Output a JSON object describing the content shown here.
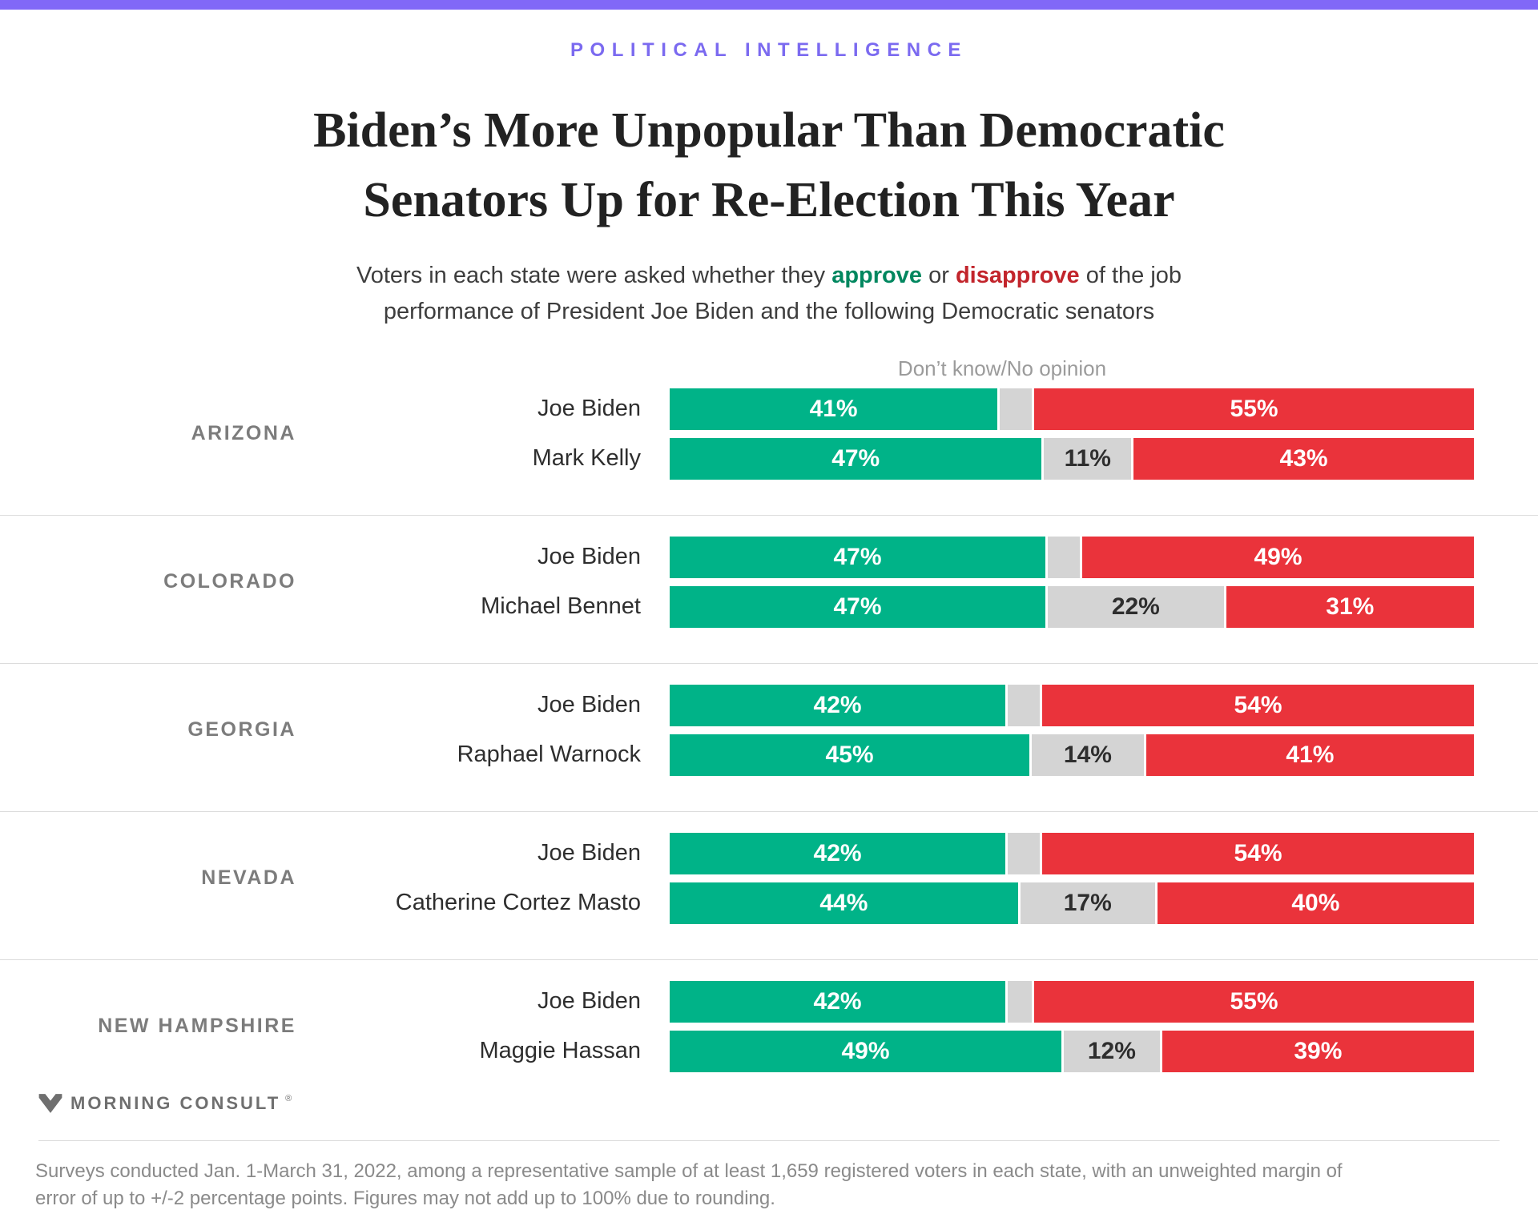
{
  "eyebrow": "POLITICAL INTELLIGENCE",
  "title": {
    "line1": "Biden’s More Unpopular Than Democratic",
    "line2": "Senators Up for Re-Election This Year"
  },
  "subtitle": {
    "prefix": "Voters in each state were asked whether they ",
    "approve_word": "approve",
    "conjunction": " or ",
    "disapprove_word": "disapprove",
    "suffix": " of the job",
    "line2": "performance of President Joe Biden and the following Democratic senators"
  },
  "colors": {
    "brand_bar": "#8168f7",
    "eyebrow_text": "#7b6af0",
    "approve_bar": "#00b388",
    "disapprove_bar": "#ea333b",
    "neutral_bar": "#d4d4d4",
    "approve_text": "#00875f",
    "disapprove_text": "#c2242b"
  },
  "chart_data": {
    "type": "bar",
    "subtype": "horizontal-stacked",
    "annotation": "Don’t know/No opinion",
    "columns": [
      "approve",
      "dont_know",
      "disapprove"
    ],
    "unit": "%",
    "groups": [
      {
        "state": "ARIZONA",
        "rows": [
          {
            "name": "Joe Biden",
            "approve": 41,
            "dont_know": 4,
            "disapprove": 55,
            "show_dont_know_label": false
          },
          {
            "name": "Mark Kelly",
            "approve": 47,
            "dont_know": 11,
            "disapprove": 43,
            "show_dont_know_label": true
          }
        ]
      },
      {
        "state": "COLORADO",
        "rows": [
          {
            "name": "Joe Biden",
            "approve": 47,
            "dont_know": 4,
            "disapprove": 49,
            "show_dont_know_label": false
          },
          {
            "name": "Michael Bennet",
            "approve": 47,
            "dont_know": 22,
            "disapprove": 31,
            "show_dont_know_label": true
          }
        ]
      },
      {
        "state": "GEORGIA",
        "rows": [
          {
            "name": "Joe Biden",
            "approve": 42,
            "dont_know": 4,
            "disapprove": 54,
            "show_dont_know_label": false
          },
          {
            "name": "Raphael Warnock",
            "approve": 45,
            "dont_know": 14,
            "disapprove": 41,
            "show_dont_know_label": true
          }
        ]
      },
      {
        "state": "NEVADA",
        "rows": [
          {
            "name": "Joe Biden",
            "approve": 42,
            "dont_know": 4,
            "disapprove": 54,
            "show_dont_know_label": false
          },
          {
            "name": "Catherine Cortez Masto",
            "approve": 44,
            "dont_know": 17,
            "disapprove": 40,
            "show_dont_know_label": true
          }
        ]
      },
      {
        "state": "NEW HAMPSHIRE",
        "rows": [
          {
            "name": "Joe Biden",
            "approve": 42,
            "dont_know": 3,
            "disapprove": 55,
            "show_dont_know_label": false
          },
          {
            "name": "Maggie Hassan",
            "approve": 49,
            "dont_know": 12,
            "disapprove": 39,
            "show_dont_know_label": true
          }
        ]
      }
    ]
  },
  "logo": {
    "text": "MORNING CONSULT",
    "registered": "®"
  },
  "footnote": {
    "line1": "Surveys conducted Jan. 1-March 31, 2022, among a representative sample of at least 1,659 registered voters in each state, with an unweighted margin of",
    "line2": "error of up to +/-2 percentage points. Figures may not add up to 100% due to rounding."
  }
}
